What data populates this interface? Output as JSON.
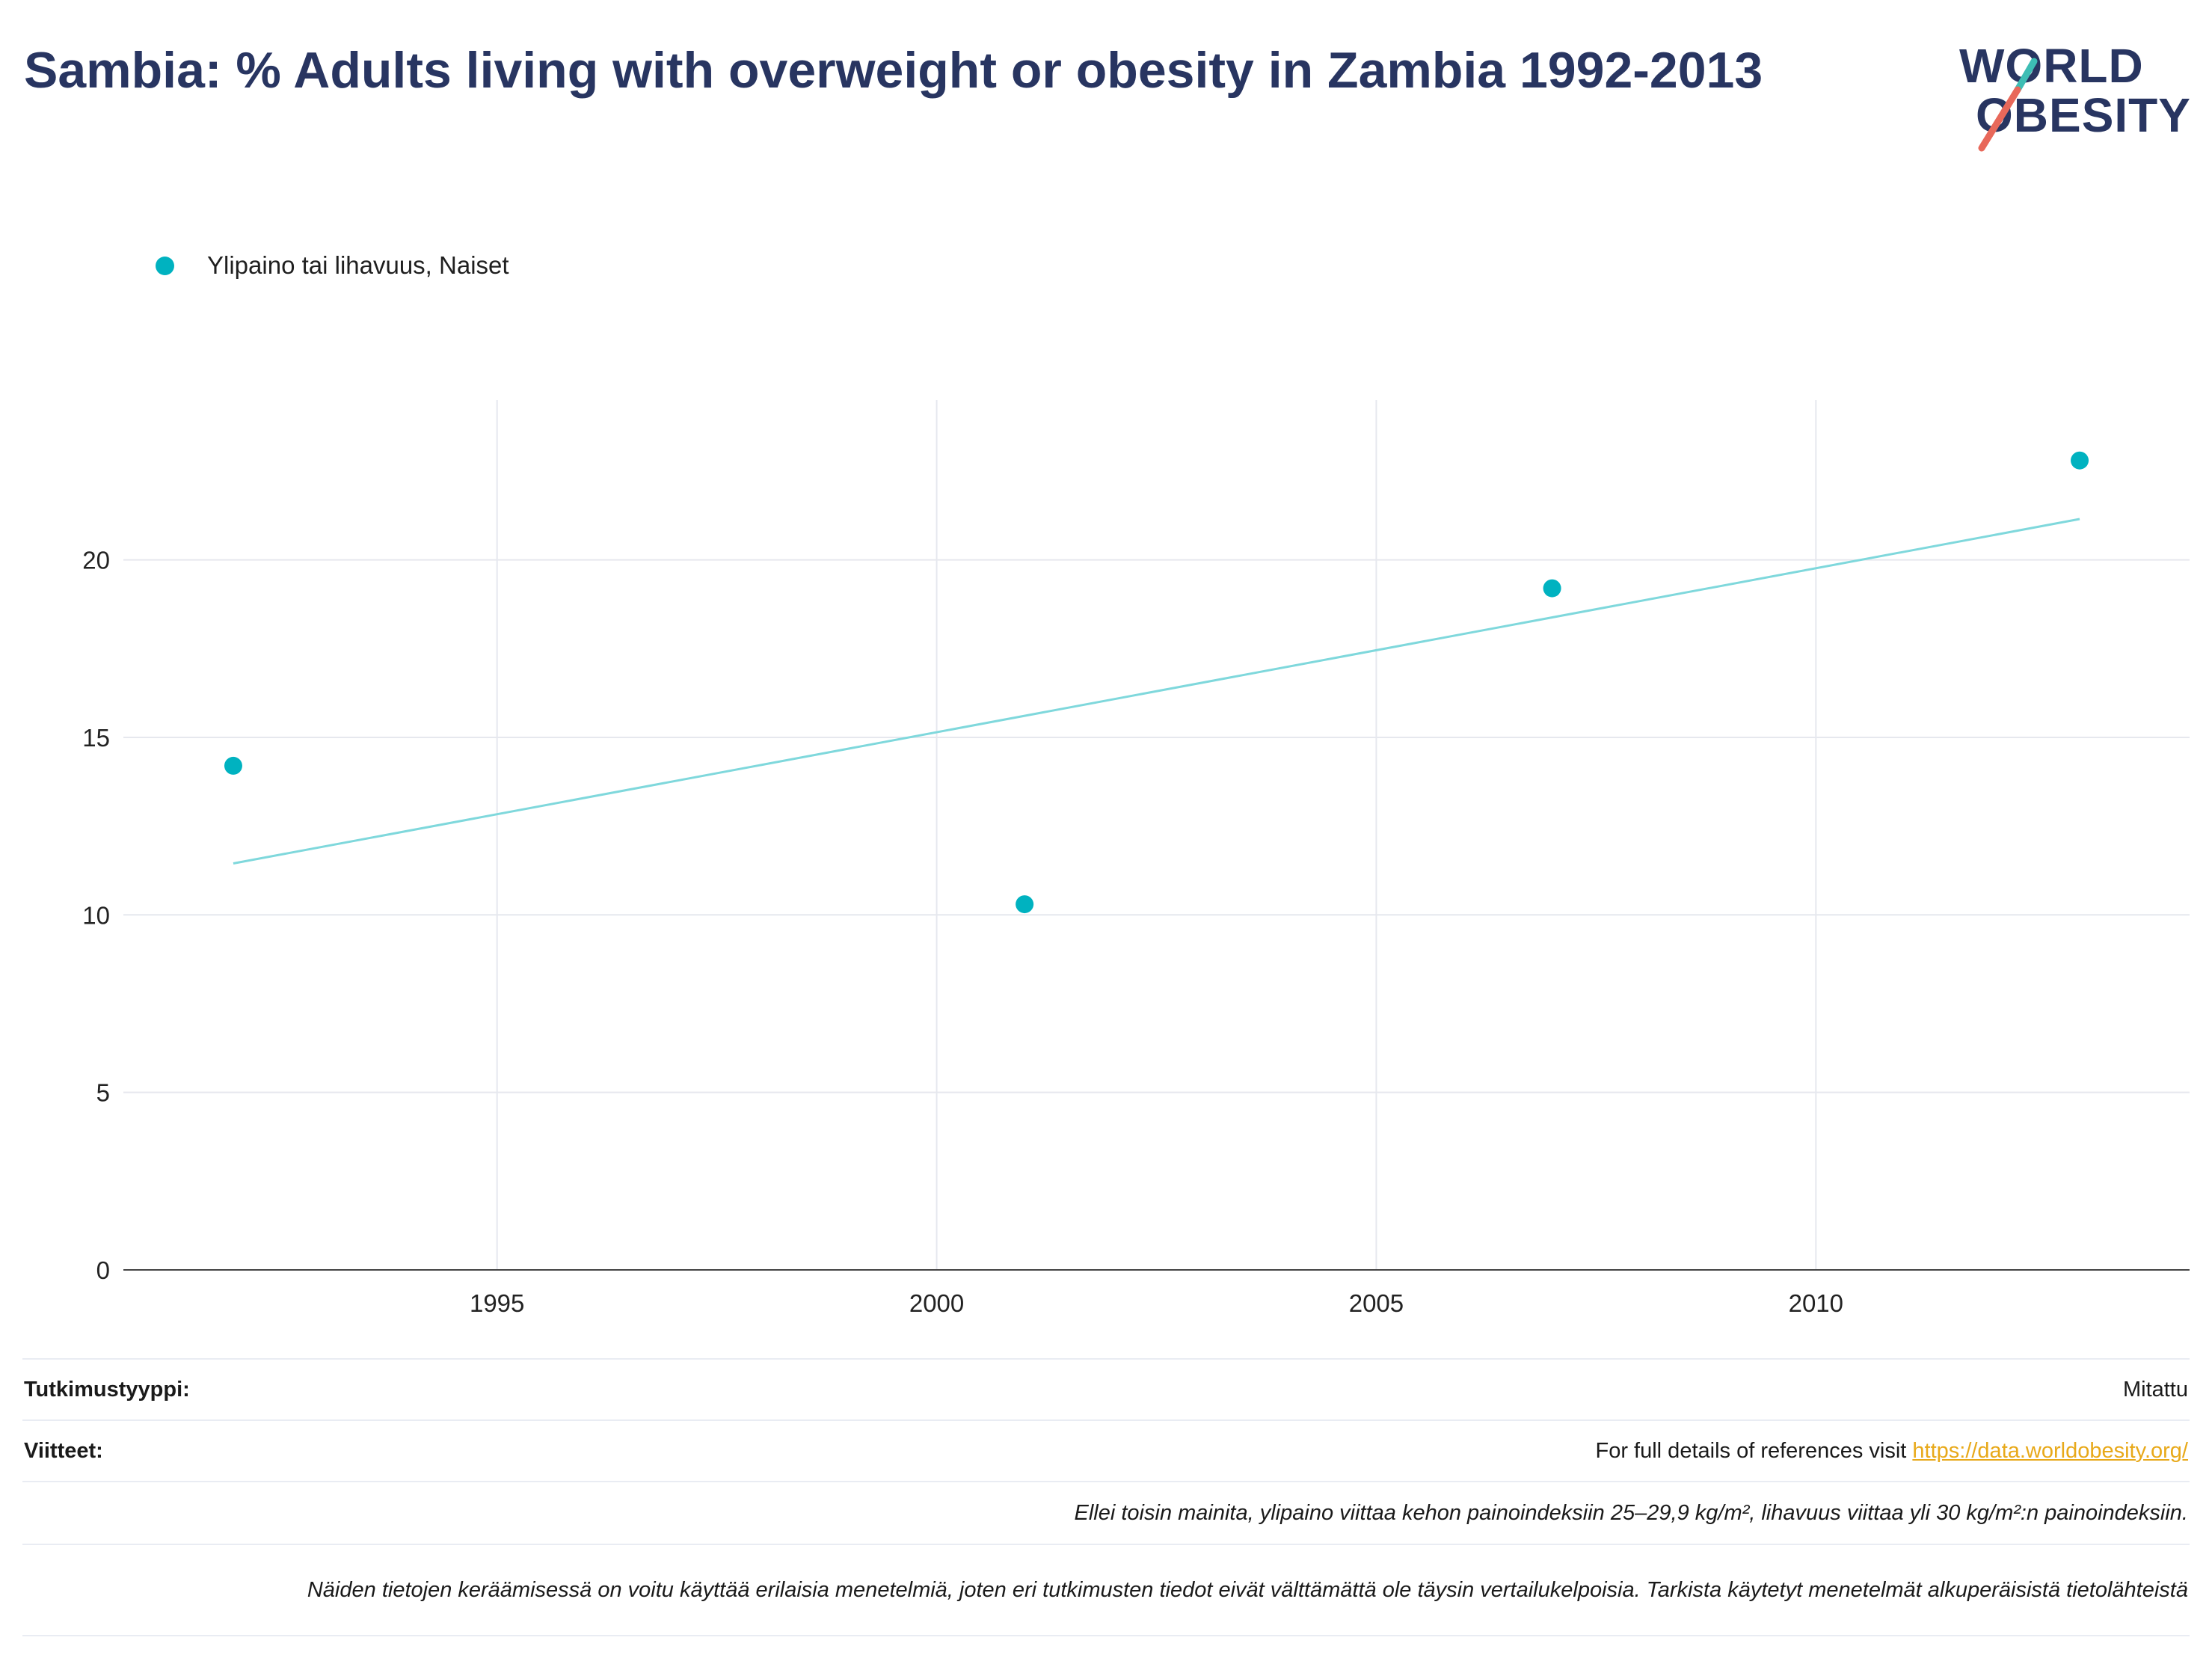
{
  "title": "Sambia: % Adults living with overweight or obesity in Zambia 1992-2013",
  "logo": {
    "line1": "WORLD",
    "line2": "OBESITY"
  },
  "colors": {
    "series": "#00b2c0",
    "trend": "#7fd8dc",
    "title": "#283561",
    "link": "#e8a91a"
  },
  "chart_data": {
    "type": "scatter",
    "title": "Sambia: % Adults living with overweight or obesity in Zambia 1992-2013",
    "xlabel": "",
    "ylabel": "",
    "xlim": [
      1990.75,
      2014.25
    ],
    "ylim": [
      0,
      24.5
    ],
    "xticks": [
      1995,
      2000,
      2005,
      2010
    ],
    "yticks": [
      0,
      5,
      10,
      15,
      20
    ],
    "grid": true,
    "legend_position": "top-left",
    "series": [
      {
        "name": "Ylipaino tai lihavuus, Naiset",
        "x": [
          1992,
          2001,
          2007,
          2013
        ],
        "y": [
          14.2,
          10.3,
          19.2,
          22.8
        ]
      }
    ],
    "trendline": {
      "x": [
        1992,
        2013
      ],
      "y": [
        11.45,
        21.15
      ]
    }
  },
  "footer": {
    "study_type_label": "Tutkimustyyppi:",
    "study_type_value": "Mitattu",
    "references_label": "Viitteet:",
    "references_text": "For full details of references visit ",
    "references_link": "https://data.worldobesity.org/",
    "note1": "Ellei toisin mainita, ylipaino viittaa kehon painoindeksiin 25–29,9 kg/m², lihavuus viittaa yli 30 kg/m²:n painoindeksiin.",
    "note2": "Näiden tietojen keräämisessä on voitu käyttää erilaisia menetelmiä, joten eri tutkimusten tiedot eivät välttämättä ole täysin vertailukelpoisia. Tarkista käytetyt menetelmät alkuperäisistä tietolähteistä"
  }
}
